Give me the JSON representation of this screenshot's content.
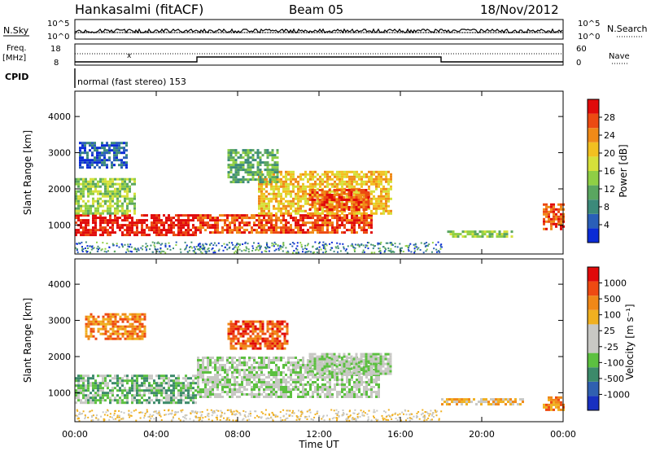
{
  "header": {
    "radar": "Hankasalmi (fitACF)",
    "beam": "Beam 05",
    "date": "18/Nov/2012"
  },
  "strip_labels": {
    "nsky": "N.Sky",
    "nsky_scale": [
      "10^5",
      "10^0"
    ],
    "nsearch": "N.Search",
    "nsearch_scale": [
      "10^5",
      "10^0"
    ],
    "freq": "Freq.",
    "freq_unit": "[MHz]",
    "freq_scale": [
      "18",
      "8"
    ],
    "nave": "Nave",
    "nave_scale": [
      "60",
      "0"
    ],
    "cpid": "CPID",
    "cpid_text": "normal (fast stereo) 153"
  },
  "chart_data": [
    {
      "type": "heatmap",
      "panel": "power",
      "ylabel": "Slant Range [km]",
      "yticks": [
        "1000",
        "2000",
        "3000",
        "4000"
      ],
      "ylim": [
        200,
        4700
      ],
      "xlabel": "Time UT",
      "xticks": [
        "00:00",
        "04:00",
        "08:00",
        "12:00",
        "16:00",
        "20:00",
        "00:00"
      ],
      "colorbar": {
        "label": "Power [dB]",
        "ticks": [
          "4",
          "8",
          "12",
          "16",
          "20",
          "24",
          "28"
        ],
        "colors": [
          "#0a2bd6",
          "#2a5fb8",
          "#3c8a7a",
          "#5aa660",
          "#8fcf45",
          "#d6e03a",
          "#f2c020",
          "#f08a18",
          "#ec4a12",
          "#e00a0a"
        ]
      },
      "regions": [
        {
          "t0": 0.0,
          "t1": 6.0,
          "r0": 700,
          "r1": 1300,
          "level": 9
        },
        {
          "t0": 0.0,
          "t1": 3.0,
          "r0": 1300,
          "r1": 2300,
          "level": 4
        },
        {
          "t0": 0.2,
          "t1": 2.5,
          "r0": 2600,
          "r1": 3300,
          "level": 1
        },
        {
          "t0": 6.0,
          "t1": 14.6,
          "r0": 800,
          "r1": 1300,
          "level": 8
        },
        {
          "t0": 9.0,
          "t1": 15.5,
          "r0": 1300,
          "r1": 2500,
          "level": 6
        },
        {
          "t0": 11.5,
          "t1": 14.5,
          "r0": 1400,
          "r1": 2000,
          "level": 8
        },
        {
          "t0": 7.5,
          "t1": 10.0,
          "r0": 2200,
          "r1": 3100,
          "level": 3
        },
        {
          "t0": 18.3,
          "t1": 21.5,
          "r0": 650,
          "r1": 850,
          "level": 4
        },
        {
          "t0": 23.0,
          "t1": 24.0,
          "r0": 900,
          "r1": 1600,
          "level": 8
        }
      ]
    },
    {
      "type": "heatmap",
      "panel": "velocity",
      "ylabel": "Slant Range [km]",
      "yticks": [
        "1000",
        "2000",
        "3000",
        "4000"
      ],
      "ylim": [
        200,
        4700
      ],
      "xlabel": "Time UT",
      "xticks": [
        "00:00",
        "04:00",
        "08:00",
        "12:00",
        "16:00",
        "20:00",
        "00:00"
      ],
      "colorbar": {
        "label": "Velocity [m s⁻¹]",
        "ticks": [
          "1000",
          "500",
          "100",
          "25",
          "-25",
          "-100",
          "-500",
          "-1000"
        ],
        "colors": [
          "#1830c0",
          "#3060b0",
          "#3c8a6a",
          "#5cc040",
          "#c8c8c4",
          "#c8c8c4",
          "#f0b020",
          "#f08818",
          "#ee4a12",
          "#e00a0a"
        ]
      },
      "regions": [
        {
          "t0": 0.0,
          "t1": 6.0,
          "r0": 700,
          "r1": 1500,
          "level": 3
        },
        {
          "t0": 6.0,
          "t1": 15.0,
          "r0": 900,
          "r1": 2000,
          "level": 4
        },
        {
          "t0": 11.5,
          "t1": 15.5,
          "r0": 1500,
          "r1": 2100,
          "level": 4
        },
        {
          "t0": 7.5,
          "t1": 10.5,
          "r0": 2200,
          "r1": 3000,
          "level": 8
        },
        {
          "t0": 0.5,
          "t1": 3.5,
          "r0": 2500,
          "r1": 3200,
          "level": 7
        },
        {
          "t0": 18.0,
          "t1": 22.0,
          "r0": 650,
          "r1": 850,
          "level": 6
        },
        {
          "t0": 23.0,
          "t1": 24.0,
          "r0": 500,
          "r1": 900,
          "level": 7
        }
      ]
    }
  ]
}
